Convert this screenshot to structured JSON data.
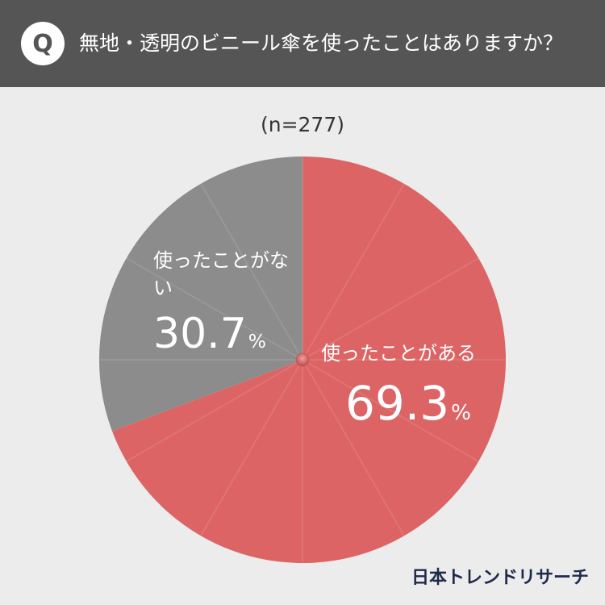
{
  "header": {
    "badge": "Q",
    "question": "無地・透明のビニール傘を使ったことはありますか？"
  },
  "sample_size": "(n=277)",
  "brand": "日本トレンドリサーチ",
  "colors": {
    "header_bg": "#555555",
    "background": "#ececec",
    "used": "#dc6464",
    "not_used": "#8c8c8c"
  },
  "chart_data": {
    "type": "pie",
    "title": "無地・透明のビニール傘を使ったことはありますか？",
    "slices": [
      {
        "label": "使ったことがある",
        "value": 69.3,
        "value_label": "69.3",
        "unit": "%",
        "color": "#dc6464"
      },
      {
        "label": "使ったことがない",
        "value": 30.7,
        "value_label": "30.7",
        "unit": "%",
        "color": "#8c8c8c"
      }
    ],
    "start": "12 o'clock",
    "direction": "clockwise",
    "legend": "none"
  }
}
